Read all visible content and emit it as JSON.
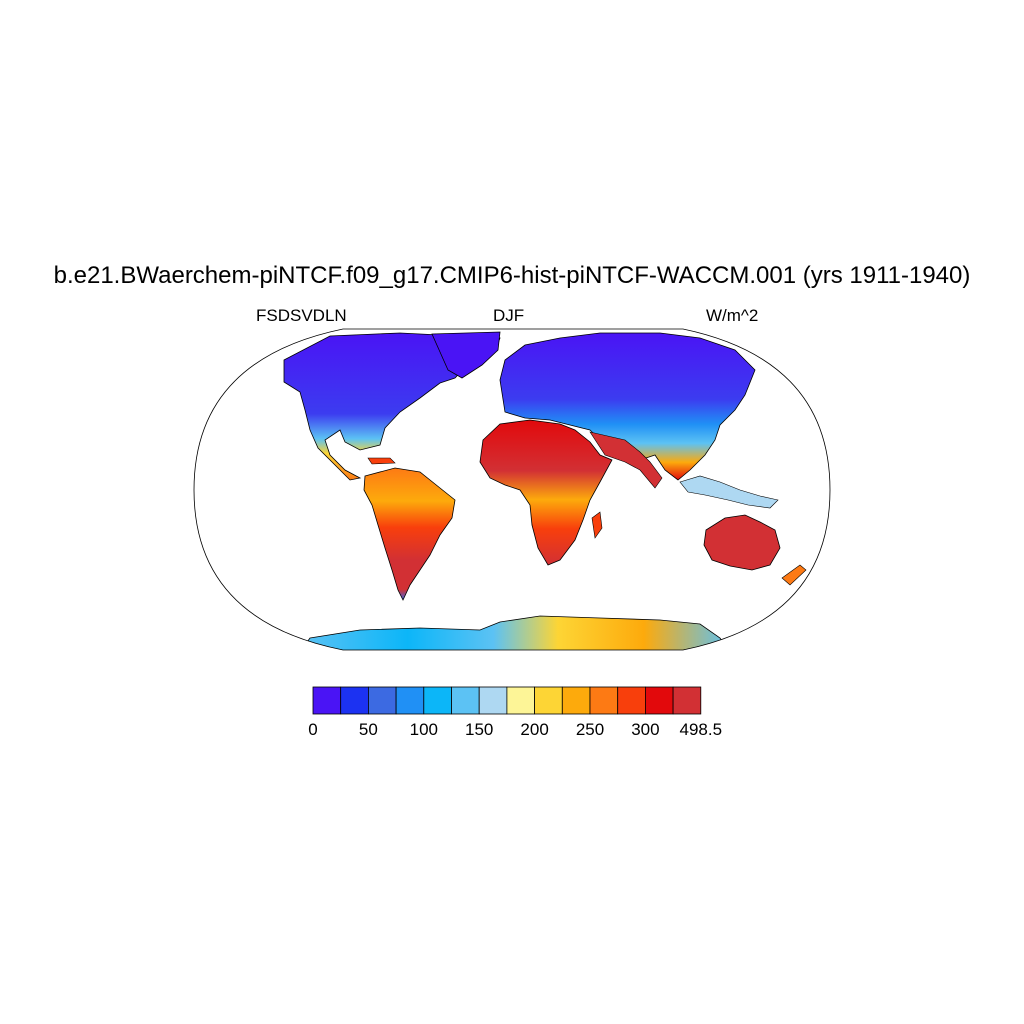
{
  "title": "b.e21.BWaerchem-piNTCF.f09_g17.CMIP6-hist-piNTCF-WACCM.001 (yrs 1911-1940)",
  "subtitle_left": "FSDSVDLN",
  "subtitle_center": "DJF",
  "subtitle_right": "W/m^2",
  "colorbar": {
    "colors": [
      "#4a14f5",
      "#1c32f2",
      "#3c6ae2",
      "#2090f5",
      "#0cb6f8",
      "#5cc2f4",
      "#aed8f2",
      "#fdf597",
      "#fdd535",
      "#fdaa0c",
      "#fd7a14",
      "#f83f0c",
      "#e2090c",
      "#d23034"
    ],
    "labels": [
      "0",
      "50",
      "100",
      "150",
      "200",
      "250",
      "300",
      "498.5"
    ]
  }
}
